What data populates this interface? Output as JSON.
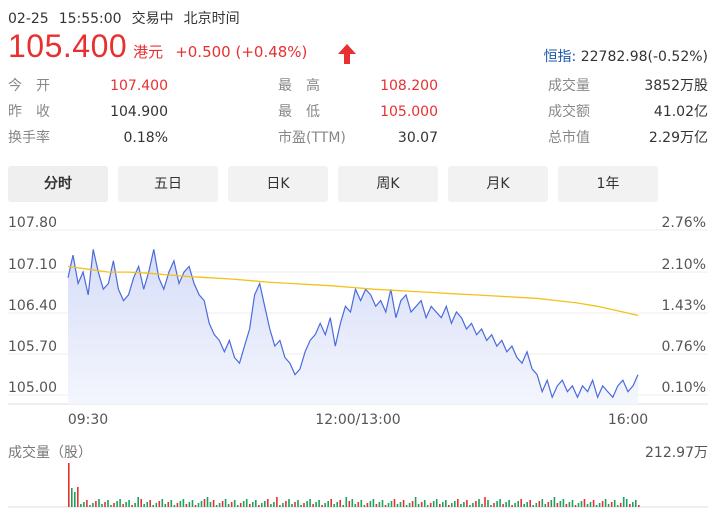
{
  "header": {
    "date": "02-25",
    "time": "15:55:00",
    "status": "交易中",
    "tz": "北京时间"
  },
  "quote": {
    "price": "105.400",
    "currency": "港元",
    "change": "+0.500",
    "change_pct": "(+0.48%)",
    "index_label": "恒指:",
    "index_value": "22782.98(-0.52%)"
  },
  "stats": [
    {
      "label": "今　开",
      "value": "107.400",
      "color": "red"
    },
    {
      "label": "最　高",
      "value": "108.200",
      "color": "red"
    },
    {
      "label": "成交量",
      "value": "3852万股",
      "color": "normal"
    },
    {
      "label": "昨　收",
      "value": "104.900",
      "color": "normal"
    },
    {
      "label": "最　低",
      "value": "105.000",
      "color": "red"
    },
    {
      "label": "成交额",
      "value": "41.02亿",
      "color": "normal"
    },
    {
      "label": "换手率",
      "value": "0.18%",
      "color": "normal"
    },
    {
      "label": "市盈(TTM)",
      "value": "30.07",
      "color": "normal"
    },
    {
      "label": "总市值",
      "value": "2.29万亿",
      "color": "normal"
    }
  ],
  "tabs": [
    "分时",
    "五日",
    "日K",
    "周K",
    "月K",
    "1年"
  ],
  "active_tab": 0,
  "colors": {
    "up": "#e93030",
    "down": "#1aa260",
    "price_line": "#4a6bdc",
    "avg_line": "#f2c21b",
    "area": "#e3e8fb"
  },
  "volume": {
    "title": "成交量（股）",
    "max_label": "212.97万"
  },
  "chart_data": {
    "type": "line",
    "y_left_ticks": [
      "107.80",
      "107.10",
      "106.40",
      "105.70",
      "105.00"
    ],
    "y_right_ticks": [
      "2.76%",
      "2.10%",
      "1.43%",
      "0.76%",
      "0.10%"
    ],
    "x_ticks": [
      "09:30",
      "12:00/13:00",
      "16:00"
    ],
    "ylim": [
      104.9,
      107.8
    ],
    "series": [
      {
        "values": [
          107.1,
          107.5,
          107.0,
          107.2,
          106.8,
          107.6,
          107.2,
          106.9,
          107.0,
          107.4,
          106.9,
          106.7,
          106.8,
          107.1,
          107.3,
          106.9,
          107.2,
          107.6,
          107.1,
          106.9,
          107.2,
          107.4,
          107.0,
          107.2,
          107.3,
          107.0,
          106.8,
          106.7,
          106.3,
          106.1,
          106.0,
          105.8,
          106.0,
          105.7,
          105.6,
          105.9,
          106.2,
          106.8,
          107.0,
          106.6,
          106.2,
          105.9,
          106.0,
          105.7,
          105.6,
          105.4,
          105.5,
          105.8,
          106.0,
          106.1,
          106.3,
          106.1,
          106.4,
          105.9,
          106.3,
          106.6,
          106.5,
          106.9,
          106.7,
          106.9,
          106.8,
          106.6,
          106.7,
          106.5,
          106.9,
          106.4,
          106.7,
          106.8,
          106.5,
          106.6,
          106.7,
          106.4,
          106.6,
          106.5,
          106.4,
          106.6,
          106.3,
          106.5,
          106.4,
          106.2,
          106.3,
          106.1,
          106.2,
          106.0,
          106.1,
          105.9,
          106.0,
          105.8,
          105.9,
          105.7,
          105.6,
          105.8,
          105.5,
          105.4,
          105.1,
          105.3,
          105.0,
          105.2,
          105.3,
          105.1,
          105.2,
          105.0,
          105.2,
          105.1,
          105.3,
          105.0,
          105.2,
          105.1,
          105.0,
          105.2,
          105.3,
          105.1,
          105.2,
          105.4
        ]
      },
      {
        "values": [
          107.3,
          107.25,
          107.2,
          107.2,
          107.18,
          107.15,
          107.12,
          107.1,
          107.08,
          107.05,
          107.02,
          107.0,
          106.98,
          106.96,
          106.93,
          106.9,
          106.88,
          106.86,
          106.84,
          106.82,
          106.8,
          106.78,
          106.76,
          106.74,
          106.7,
          106.66,
          106.6,
          106.52,
          106.44
        ]
      }
    ]
  }
}
